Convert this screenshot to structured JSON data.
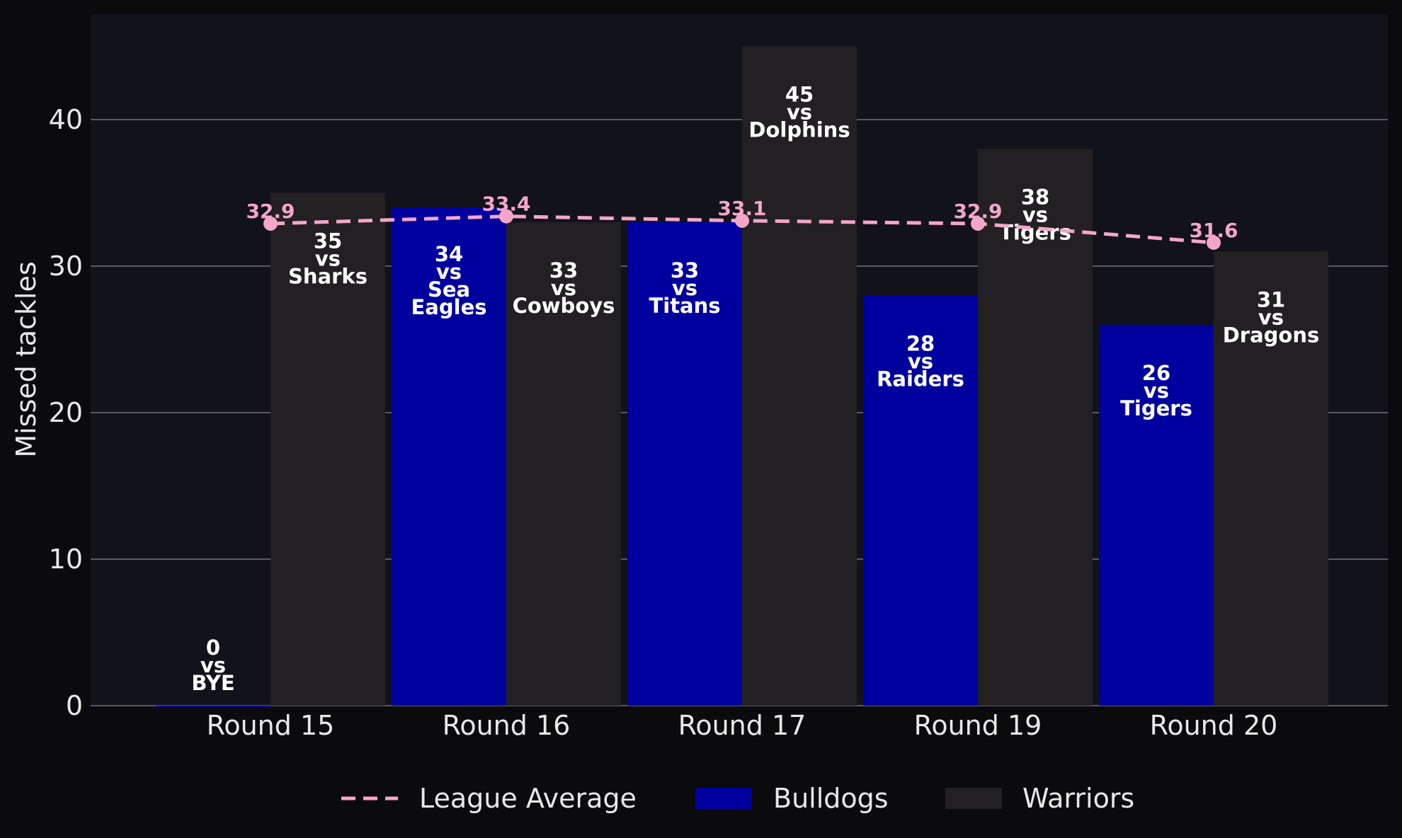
{
  "chart_data": {
    "type": "bar",
    "ylabel": "Missed tackles",
    "ylim": [
      0,
      47
    ],
    "yticks": [
      0,
      10,
      20,
      30,
      40
    ],
    "categories": [
      "Round 15",
      "Round 16",
      "Round 17",
      "Round 19",
      "Round 20"
    ],
    "series": [
      {
        "name": "Bulldogs",
        "color": "#00009e",
        "values": [
          0,
          34,
          33,
          28,
          26
        ],
        "opponents": [
          "BYE",
          "Sea Eagles",
          "Titans",
          "Raiders",
          "Tigers"
        ]
      },
      {
        "name": "Warriors",
        "color": "#232023",
        "values": [
          35,
          33,
          45,
          38,
          31
        ],
        "opponents": [
          "Sharks",
          "Cowboys",
          "Dolphins",
          "Tigers",
          "Dragons"
        ]
      }
    ],
    "line": {
      "name": "League Average",
      "color": "#f4a6c8",
      "style": "dashed",
      "values": [
        32.9,
        33.4,
        33.1,
        32.9,
        31.6
      ]
    },
    "vs_text": "vs",
    "grid": true,
    "legend": "bottom-center",
    "background": "#12121a",
    "page_background": "#0b0b0e"
  }
}
